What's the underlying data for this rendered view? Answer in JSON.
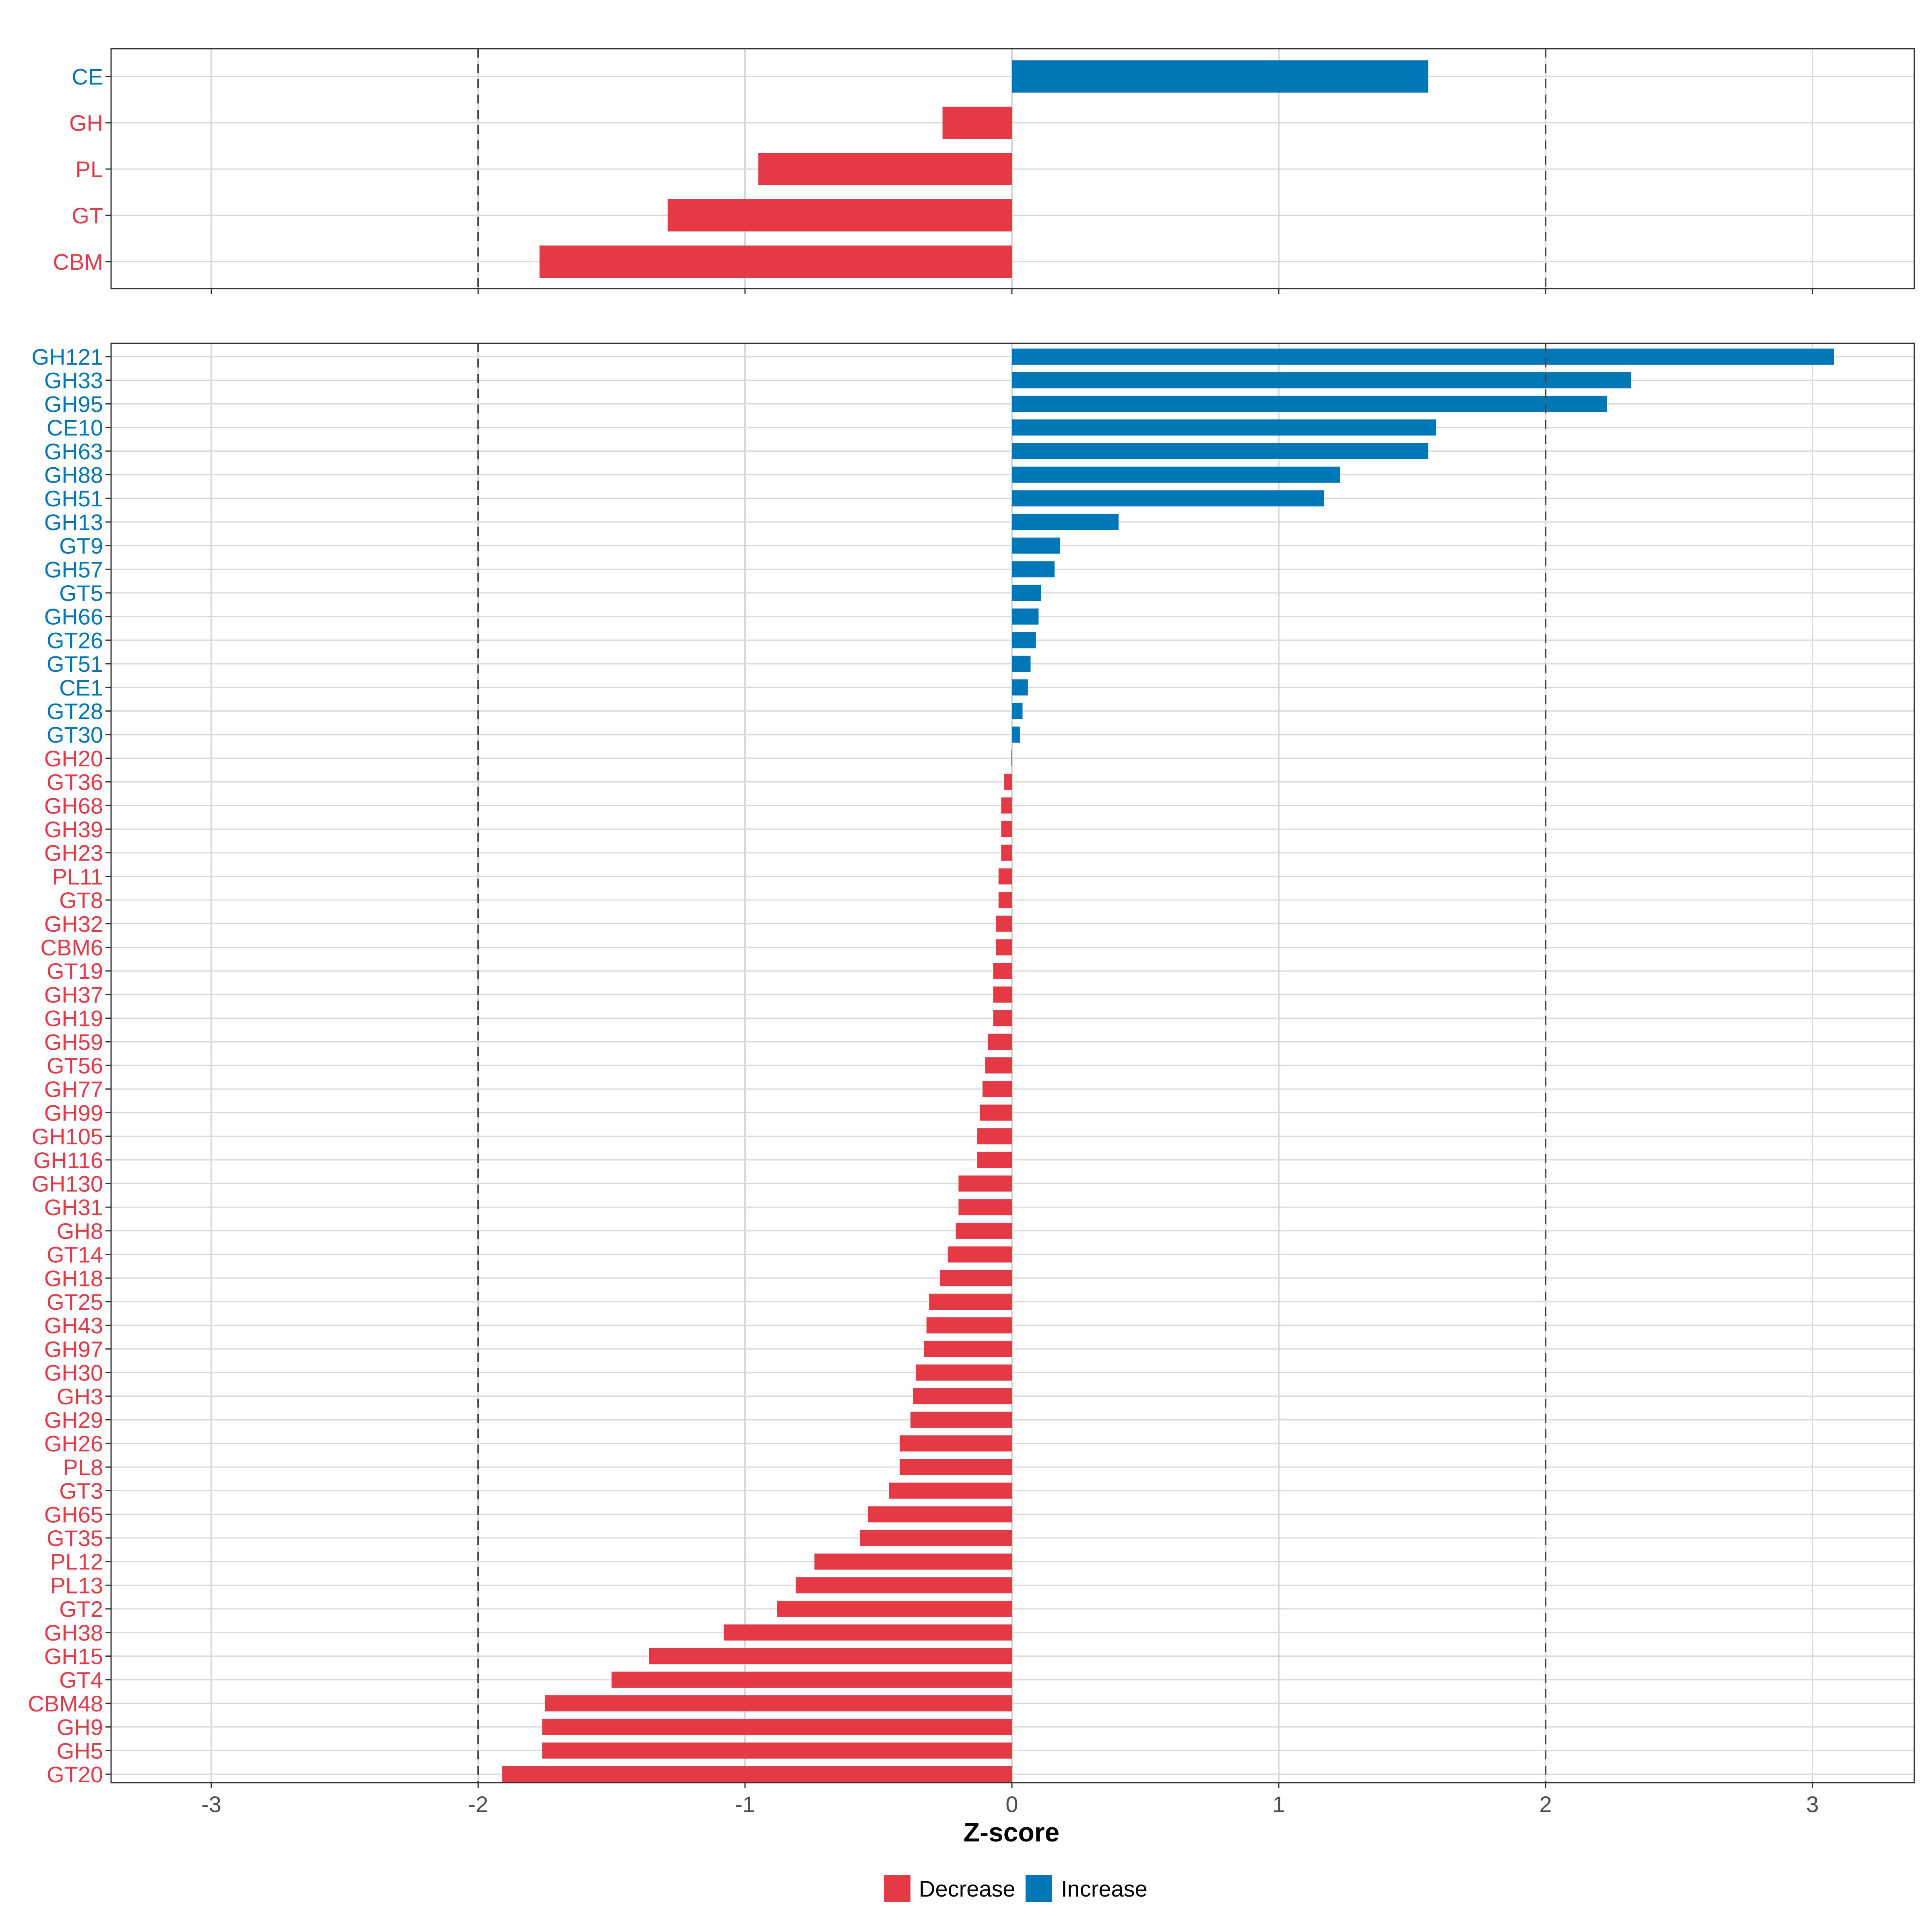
{
  "chart_data": {
    "type": "bar",
    "orientation": "horizontal",
    "xlabel": "Z-score",
    "xlim": [
      -3.4,
      3.4
    ],
    "x_ticks": [
      -3,
      -2,
      -1,
      0,
      1,
      2,
      3
    ],
    "reference_lines": [
      -2,
      2
    ],
    "grid": true,
    "legend_position": "bottom",
    "colors": {
      "Decrease": "#e63946",
      "Increase": "#0077b6"
    },
    "legend": [
      {
        "label": "Decrease",
        "color": "#e63946"
      },
      {
        "label": "Increase",
        "color": "#0077b6"
      }
    ],
    "panels": [
      {
        "name": "families",
        "categories": [
          {
            "label": "CE",
            "value": 1.56
          },
          {
            "label": "GH",
            "value": -0.26
          },
          {
            "label": "PL",
            "value": -0.95
          },
          {
            "label": "GT",
            "value": -1.29
          },
          {
            "label": "CBM",
            "value": -1.77
          }
        ]
      },
      {
        "name": "subfamilies",
        "categories": [
          {
            "label": "GH121",
            "value": 3.08
          },
          {
            "label": "GH33",
            "value": 2.32
          },
          {
            "label": "GH95",
            "value": 2.23
          },
          {
            "label": "CE10",
            "value": 1.59
          },
          {
            "label": "GH63",
            "value": 1.56
          },
          {
            "label": "GH88",
            "value": 1.23
          },
          {
            "label": "GH51",
            "value": 1.17
          },
          {
            "label": "GH13",
            "value": 0.4
          },
          {
            "label": "GT9",
            "value": 0.18
          },
          {
            "label": "GH57",
            "value": 0.16
          },
          {
            "label": "GT5",
            "value": 0.11
          },
          {
            "label": "GH66",
            "value": 0.1
          },
          {
            "label": "GT26",
            "value": 0.09
          },
          {
            "label": "GT51",
            "value": 0.07
          },
          {
            "label": "CE1",
            "value": 0.06
          },
          {
            "label": "GT28",
            "value": 0.04
          },
          {
            "label": "GT30",
            "value": 0.03
          },
          {
            "label": "GH20",
            "value": -0.002
          },
          {
            "label": "GT36",
            "value": -0.03
          },
          {
            "label": "GH68",
            "value": -0.04
          },
          {
            "label": "GH39",
            "value": -0.04
          },
          {
            "label": "GH23",
            "value": -0.04
          },
          {
            "label": "PL11",
            "value": -0.05
          },
          {
            "label": "GT8",
            "value": -0.05
          },
          {
            "label": "GH32",
            "value": -0.06
          },
          {
            "label": "CBM6",
            "value": -0.06
          },
          {
            "label": "GT19",
            "value": -0.07
          },
          {
            "label": "GH37",
            "value": -0.07
          },
          {
            "label": "GH19",
            "value": -0.07
          },
          {
            "label": "GH59",
            "value": -0.09
          },
          {
            "label": "GT56",
            "value": -0.1
          },
          {
            "label": "GH77",
            "value": -0.11
          },
          {
            "label": "GH99",
            "value": -0.12
          },
          {
            "label": "GH105",
            "value": -0.13
          },
          {
            "label": "GH116",
            "value": -0.13
          },
          {
            "label": "GH130",
            "value": -0.2
          },
          {
            "label": "GH31",
            "value": -0.2
          },
          {
            "label": "GH8",
            "value": -0.21
          },
          {
            "label": "GT14",
            "value": -0.24
          },
          {
            "label": "GH18",
            "value": -0.27
          },
          {
            "label": "GT25",
            "value": -0.31
          },
          {
            "label": "GH43",
            "value": -0.32
          },
          {
            "label": "GH97",
            "value": -0.33
          },
          {
            "label": "GH30",
            "value": -0.36
          },
          {
            "label": "GH3",
            "value": -0.37
          },
          {
            "label": "GH29",
            "value": -0.38
          },
          {
            "label": "GH26",
            "value": -0.42
          },
          {
            "label": "PL8",
            "value": -0.42
          },
          {
            "label": "GT3",
            "value": -0.46
          },
          {
            "label": "GH65",
            "value": -0.54
          },
          {
            "label": "GT35",
            "value": -0.57
          },
          {
            "label": "PL12",
            "value": -0.74
          },
          {
            "label": "PL13",
            "value": -0.81
          },
          {
            "label": "GT2",
            "value": -0.88
          },
          {
            "label": "GH38",
            "value": -1.08
          },
          {
            "label": "GH15",
            "value": -1.36
          },
          {
            "label": "GT4",
            "value": -1.5
          },
          {
            "label": "CBM48",
            "value": -1.75
          },
          {
            "label": "GH9",
            "value": -1.76
          },
          {
            "label": "GH5",
            "value": -1.76
          },
          {
            "label": "GT20",
            "value": -1.91
          }
        ]
      }
    ]
  }
}
